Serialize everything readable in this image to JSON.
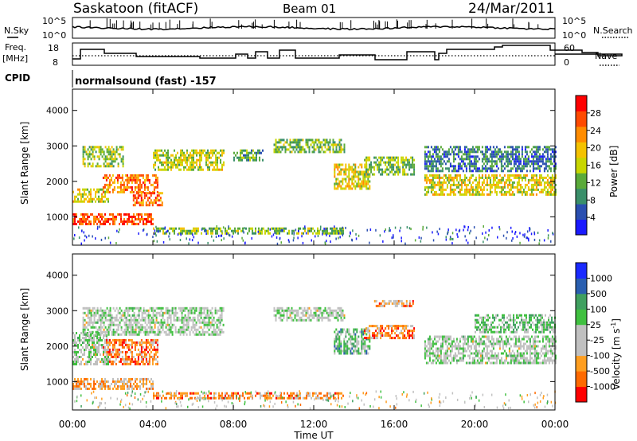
{
  "header": {
    "station": "Saskatoon (fitACF)",
    "beam": "Beam 01",
    "date": "24/Mar/2011"
  },
  "top_panel": {
    "left_label": "N.Sky",
    "right_label": "N.Search",
    "left_ticks": [
      "10^5",
      "10^0"
    ],
    "right_ticks": [
      "10^5",
      "10^0"
    ]
  },
  "freq_panel": {
    "left_label_1": "Freq.",
    "left_label_2": "[MHz]",
    "right_label": "Nave",
    "left_ticks": [
      "18",
      "8"
    ],
    "right_ticks": [
      "60",
      "0"
    ]
  },
  "cpid_panel": {
    "label": "CPID",
    "text": "normalsound (fast) -157"
  },
  "colors": {
    "power_scale": [
      "#1a1aff",
      "#2a4fb0",
      "#3a8f6a",
      "#5aaa3a",
      "#c8d600",
      "#f4c200",
      "#ff8c00",
      "#ff4a00",
      "#ff0000"
    ],
    "velocity_scale": [
      "#ff0000",
      "#ff6a00",
      "#ff9e20",
      "#c0c0c0",
      "#c0c0c0",
      "#40c040",
      "#40a060",
      "#2a5fb0",
      "#1a2aff"
    ]
  },
  "chart_data": [
    {
      "type": "heatmap",
      "name": "power",
      "ylabel": "Slant Range [km]",
      "colorbar_label": "Power [dB]",
      "colorbar_ticks": [
        "4",
        "8",
        "12",
        "16",
        "20",
        "24",
        "28"
      ],
      "ylim": [
        200,
        4600
      ],
      "yticks": [
        "1000",
        "2000",
        "3000",
        "4000"
      ],
      "xlim": [
        0,
        24
      ],
      "blobs": [
        {
          "x": [
            0.0,
            1.8
          ],
          "y": [
            1400,
            1800
          ],
          "level": 0.55
        },
        {
          "x": [
            1.5,
            4.2
          ],
          "y": [
            1700,
            2200
          ],
          "level": 0.75
        },
        {
          "x": [
            0.0,
            4.0
          ],
          "y": [
            800,
            1100
          ],
          "level": 0.85
        },
        {
          "x": [
            3.0,
            4.5
          ],
          "y": [
            1300,
            1700
          ],
          "level": 0.8
        },
        {
          "x": [
            0.5,
            2.5
          ],
          "y": [
            2400,
            3000
          ],
          "level": 0.45
        },
        {
          "x": [
            4.0,
            7.5
          ],
          "y": [
            2300,
            2900
          ],
          "level": 0.5
        },
        {
          "x": [
            4.0,
            13.5
          ],
          "y": [
            550,
            700
          ],
          "level": 0.4
        },
        {
          "x": [
            8.0,
            9.5
          ],
          "y": [
            2600,
            2900
          ],
          "level": 0.35
        },
        {
          "x": [
            10.0,
            13.5
          ],
          "y": [
            2800,
            3200
          ],
          "level": 0.4
        },
        {
          "x": [
            13.0,
            14.8
          ],
          "y": [
            1800,
            2500
          ],
          "level": 0.55
        },
        {
          "x": [
            14.5,
            17.0
          ],
          "y": [
            2200,
            2700
          ],
          "level": 0.4
        },
        {
          "x": [
            17.5,
            24.0
          ],
          "y": [
            1600,
            2200
          ],
          "level": 0.55
        },
        {
          "x": [
            17.5,
            24.0
          ],
          "y": [
            2300,
            3000
          ],
          "level": 0.25
        }
      ]
    },
    {
      "type": "heatmap",
      "name": "velocity",
      "xlabel": "Time UT",
      "ylabel": "Slant Range [km]",
      "colorbar_label": "Velocity [m s-1]",
      "colorbar_ticks": [
        "-1000",
        "-500",
        "-100",
        "-25",
        "25",
        "100",
        "500",
        "1000"
      ],
      "ylim": [
        200,
        4600
      ],
      "yticks": [
        "1000",
        "2000",
        "3000",
        "4000"
      ],
      "xlim": [
        0,
        24
      ],
      "xticks": [
        "00:00",
        "04:00",
        "08:00",
        "12:00",
        "16:00",
        "20:00",
        "00:00"
      ],
      "blobs": [
        {
          "x": [
            0.0,
            4.0
          ],
          "y": [
            800,
            1100
          ],
          "level": 0.3
        },
        {
          "x": [
            1.5,
            4.2
          ],
          "y": [
            1500,
            2200
          ],
          "level": 0.22
        },
        {
          "x": [
            0.0,
            1.8
          ],
          "y": [
            1500,
            2400
          ],
          "level": 0.5
        },
        {
          "x": [
            0.5,
            7.5
          ],
          "y": [
            2300,
            3100
          ],
          "level": 0.5
        },
        {
          "x": [
            4.0,
            13.5
          ],
          "y": [
            550,
            700
          ],
          "level": 0.25
        },
        {
          "x": [
            10.0,
            13.5
          ],
          "y": [
            2700,
            3100
          ],
          "level": 0.5
        },
        {
          "x": [
            13.0,
            14.8
          ],
          "y": [
            1800,
            2500
          ],
          "level": 0.62
        },
        {
          "x": [
            14.5,
            17.0
          ],
          "y": [
            2200,
            2600
          ],
          "level": 0.22
        },
        {
          "x": [
            15.0,
            17.0
          ],
          "y": [
            3100,
            3300
          ],
          "level": 0.28
        },
        {
          "x": [
            17.5,
            24.0
          ],
          "y": [
            1500,
            2300
          ],
          "level": 0.5
        },
        {
          "x": [
            20.0,
            24.0
          ],
          "y": [
            2400,
            2900
          ],
          "level": 0.6
        }
      ]
    }
  ]
}
